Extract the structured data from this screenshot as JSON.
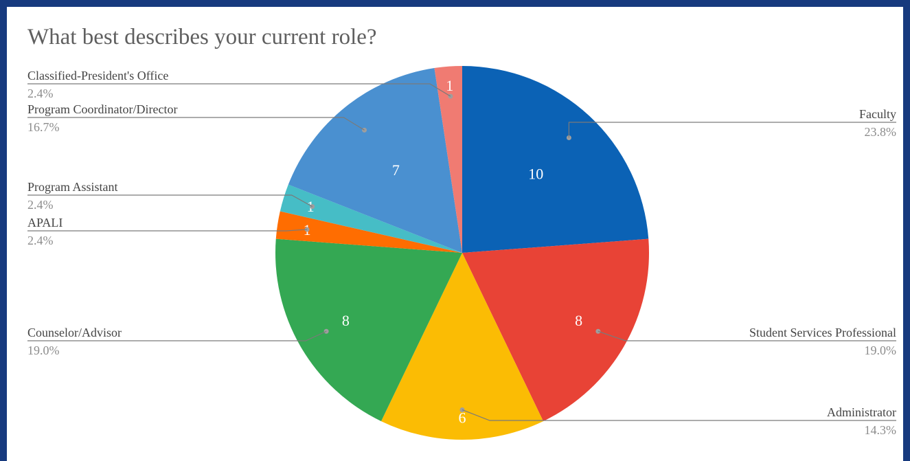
{
  "chart_data": {
    "type": "pie",
    "title": "What best describes your current role?",
    "slices": [
      {
        "label": "Faculty",
        "value": 10,
        "percent": "23.8%",
        "color": "#0b62b5"
      },
      {
        "label": "Student Services Professional",
        "value": 8,
        "percent": "19.0%",
        "color": "#e84336"
      },
      {
        "label": "Administrator",
        "value": 6,
        "percent": "14.3%",
        "color": "#fbbc04"
      },
      {
        "label": "Counselor/Advisor",
        "value": 8,
        "percent": "19.0%",
        "color": "#34a853"
      },
      {
        "label": "APALI",
        "value": 1,
        "percent": "2.4%",
        "color": "#ff6d01"
      },
      {
        "label": "Program Assistant",
        "value": 1,
        "percent": "2.4%",
        "color": "#46bdc6"
      },
      {
        "label": "Program Coordinator/Director",
        "value": 7,
        "percent": "16.7%",
        "color": "#4a90d0"
      },
      {
        "label": "Classified-President's Office",
        "value": 1,
        "percent": "2.4%",
        "color": "#f07b72"
      }
    ],
    "legend": "none",
    "labels": "callouts"
  }
}
